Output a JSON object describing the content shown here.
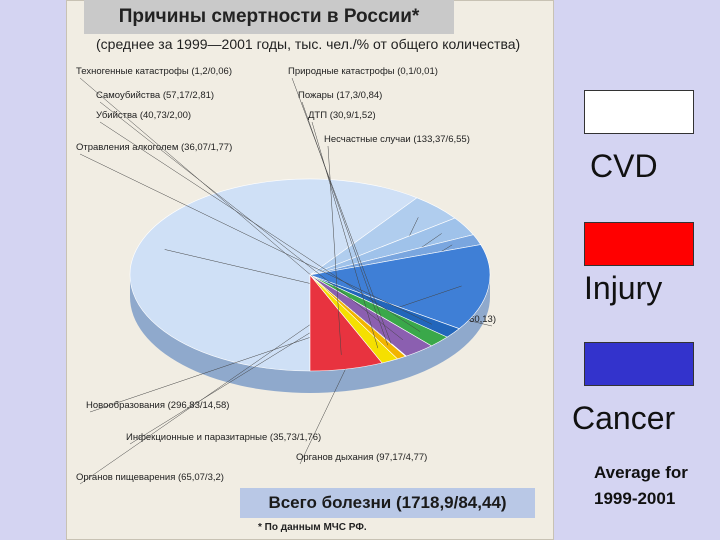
{
  "clipping": {
    "title": "Причины смертности в России*",
    "subtitle": "(среднее за 1999—2001 годы, тыс. чел./% от общего количества)",
    "total": "Всего болезни (1718,9/84,44)",
    "source": "* По данным МЧС РФ."
  },
  "legend": {
    "items": [
      {
        "label": "CVD",
        "color": "#ffffff"
      },
      {
        "label": "Injury",
        "color": "#ff0000"
      },
      {
        "label": "Cancer",
        "color": "#3333cc"
      }
    ],
    "note": "Average for 1999-2001"
  },
  "chart_data": {
    "type": "pie",
    "title": "Причины смертности в России*",
    "subtitle": "(среднее за 1999—2001 годы, тыс. чел./% от общего количества)",
    "slices": [
      {
        "label": "Системы кровообращения (1224,1/60,13)",
        "value": 60.13,
        "color": "#cfe0f6"
      },
      {
        "label": "Органов дыхания (97,17/4,77)",
        "value": 4.77,
        "color": "#b0cdee"
      },
      {
        "label": "Органов пищеварения (65,07/3,2)",
        "value": 3.2,
        "color": "#9fc2ea"
      },
      {
        "label": "Инфекционные и паразитарные (35,73/1,76)",
        "value": 1.76,
        "color": "#7aa6df"
      },
      {
        "label": "Новообразования (296,83/14,58)",
        "value": 14.58,
        "color": "#3f7fd6"
      },
      {
        "label": "Отравления алкоголем (36,07/1,77)",
        "value": 1.77,
        "color": "#2266bb"
      },
      {
        "label": "Убийства (40,73/2,00)",
        "value": 2.0,
        "color": "#3aa84a"
      },
      {
        "label": "Самоубийства (57,17/2,81)",
        "value": 2.81,
        "color": "#8b5fb0"
      },
      {
        "label": "Техногенные катастрофы (1,2/0,06)",
        "value": 0.06,
        "color": "#555555"
      },
      {
        "label": "Природные катастрофы (0,1/0,01)",
        "value": 0.01,
        "color": "#777777"
      },
      {
        "label": "Пожары (17,3/0,84)",
        "value": 0.84,
        "color": "#f2b400"
      },
      {
        "label": "ДТП (30,9/1,52)",
        "value": 1.52,
        "color": "#f5e000"
      },
      {
        "label": "Несчастные случаи (133,37/6,55)",
        "value": 6.55,
        "color": "#e8333f"
      }
    ]
  }
}
